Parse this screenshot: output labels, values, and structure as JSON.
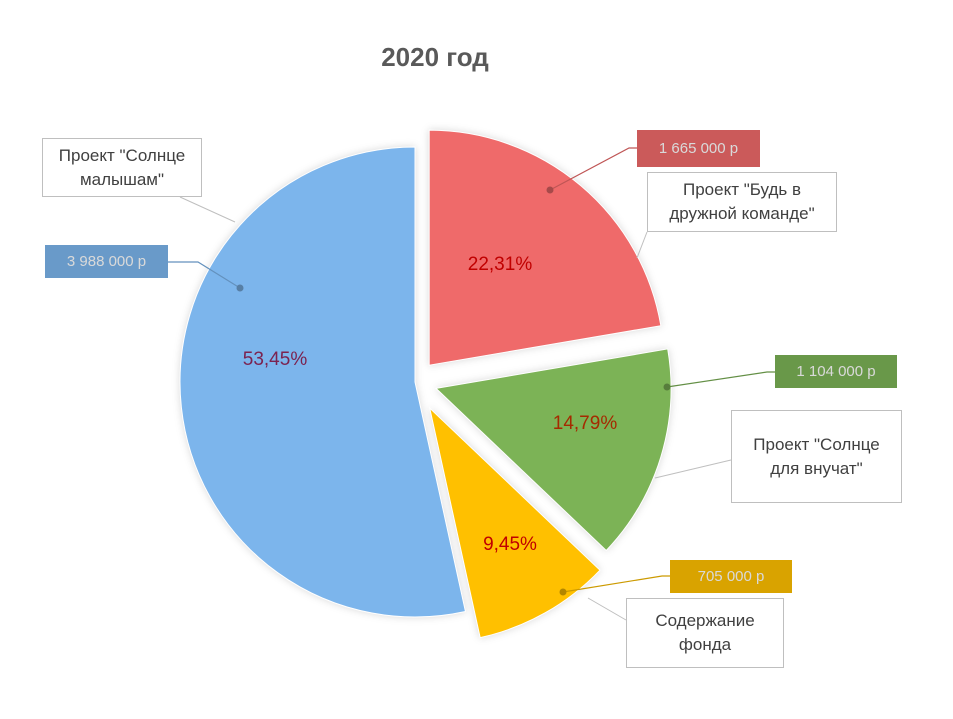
{
  "chart_data": {
    "type": "pie",
    "title": "2020 год",
    "categories": [
      "Проект \"Солнце малышам\"",
      "Проект \"Будь в дружной команде\"",
      "Проект \"Солнце для внучат\"",
      "Содержание фонда"
    ],
    "values": [
      3988000,
      1665000,
      1104000,
      705000
    ],
    "value_labels": [
      "3 988 000 р",
      "1 665 000 р",
      "1 104 000 р",
      "705 000 р"
    ],
    "percent_labels": [
      "53,45%",
      "22,31%",
      "14,79%",
      "9,45%"
    ],
    "colors": [
      "#7cb5ec",
      "#ef6a6a",
      "#7cb356",
      "#ffc000"
    ]
  }
}
